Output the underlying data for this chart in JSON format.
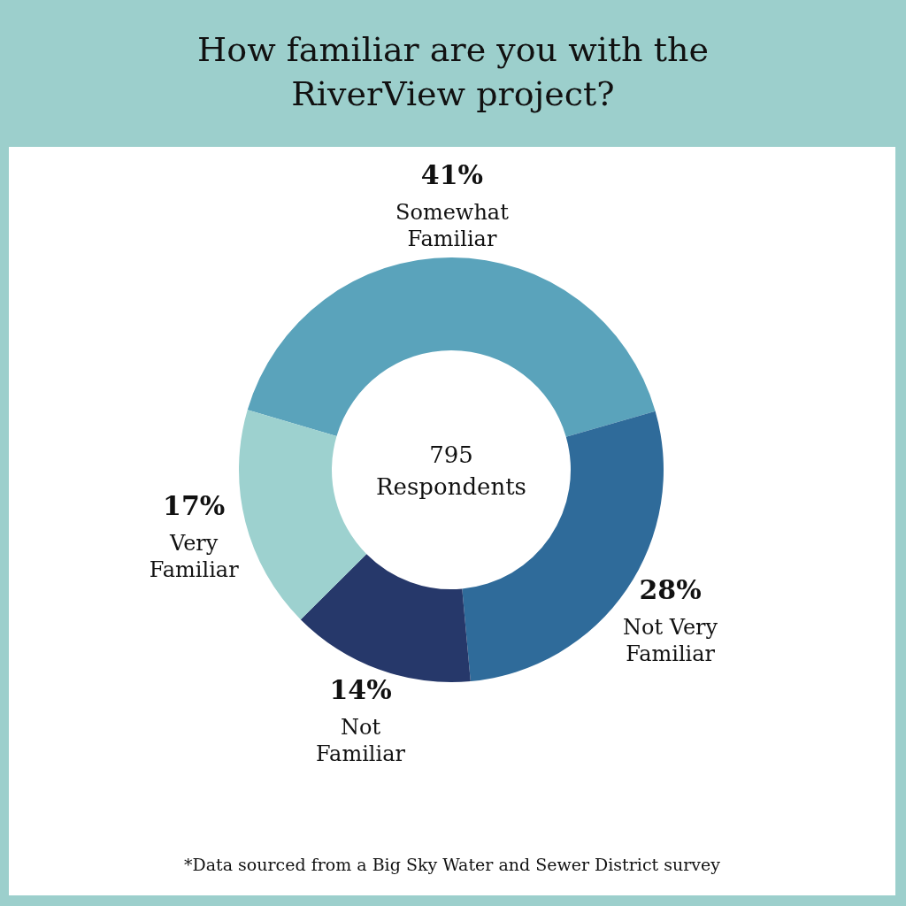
{
  "chart_data": {
    "type": "donut",
    "title": "How familiar are you with the RiverView project?",
    "categories": [
      "Somewhat Familiar",
      "Not Very Familiar",
      "Not Familiar",
      "Very Familiar"
    ],
    "values": [
      41,
      28,
      14,
      17
    ],
    "colors": [
      "#5aa3bb",
      "#2f6b9a",
      "#26386a",
      "#9dd1cf"
    ],
    "value_labels": [
      "41%",
      "28%",
      "14%",
      "17%"
    ],
    "annotations": [
      "795 Respondents",
      "*Data sourced from a Big Sky Water and Sewer District survey"
    ],
    "legend": false
  }
}
